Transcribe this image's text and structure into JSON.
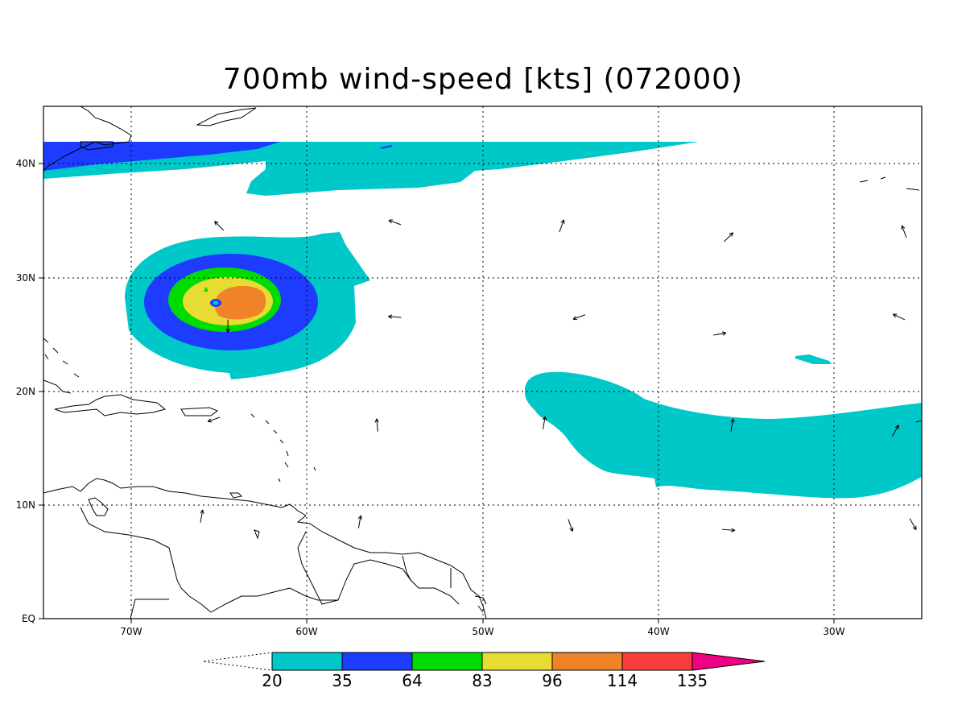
{
  "title": "700mb wind-speed [kts] (072000)",
  "axes": {
    "x_ticks": [
      "70W",
      "60W",
      "50W",
      "40W",
      "30W"
    ],
    "y_ticks": [
      "40N",
      "30N",
      "20N",
      "10N",
      "EQ"
    ]
  },
  "colorbar": {
    "levels": [
      "20",
      "35",
      "64",
      "83",
      "96",
      "114",
      "135"
    ],
    "colors": [
      "#00c8c8",
      "#1e3cff",
      "#00dc00",
      "#e6dc32",
      "#f08228",
      "#fa3c3c",
      "#f00082"
    ]
  },
  "wind_vectors": [
    {
      "lon": -65,
      "lat": 34.5,
      "dir": 135
    },
    {
      "lon": -55,
      "lat": 34.8,
      "dir": 160
    },
    {
      "lon": -45.5,
      "lat": 34.5,
      "dir": 70
    },
    {
      "lon": -36,
      "lat": 33.5,
      "dir": 45
    },
    {
      "lon": -26,
      "lat": 34,
      "dir": 110
    },
    {
      "lon": -55,
      "lat": 26.5,
      "dir": 175
    },
    {
      "lon": -44.5,
      "lat": 26.5,
      "dir": 200
    },
    {
      "lon": -36.5,
      "lat": 25,
      "dir": 10
    },
    {
      "lon": -26.3,
      "lat": 26.5,
      "dir": 155
    },
    {
      "lon": -64.5,
      "lat": 25.7,
      "dir": 270
    },
    {
      "lon": -65.3,
      "lat": 17.5,
      "dir": 200
    },
    {
      "lon": -56,
      "lat": 17,
      "dir": 95
    },
    {
      "lon": -46.5,
      "lat": 17.2,
      "dir": 80
    },
    {
      "lon": -35.8,
      "lat": 17,
      "dir": 80
    },
    {
      "lon": -26.5,
      "lat": 16.5,
      "dir": 60
    },
    {
      "lon": -57,
      "lat": 8.5,
      "dir": 80
    },
    {
      "lon": -45,
      "lat": 8.2,
      "dir": 290
    },
    {
      "lon": -36,
      "lat": 7.8,
      "dir": 355
    },
    {
      "lon": -25.5,
      "lat": 8.3,
      "dir": 300
    },
    {
      "lon": -66,
      "lat": 9,
      "dir": 80
    }
  ]
}
